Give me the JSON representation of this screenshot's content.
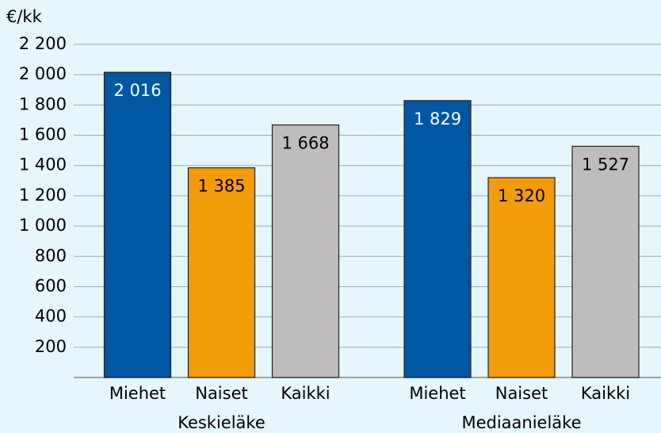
{
  "chart_data": {
    "type": "bar",
    "y_label": "€/kk",
    "categories": [
      "Keskieläke",
      "Mediaanieläke"
    ],
    "series": [
      {
        "name": "Miehet",
        "color": "#0057a4",
        "values": [
          2016,
          1829
        ],
        "value_labels": [
          "2 016",
          "1 829"
        ]
      },
      {
        "name": "Naiset",
        "color": "#f39c0a",
        "values": [
          1385,
          1320
        ],
        "value_labels": [
          "1 385",
          "1 320"
        ]
      },
      {
        "name": "Kaikki",
        "color": "#bfbdbb",
        "values": [
          1668,
          1527
        ],
        "value_labels": [
          "1 668",
          "1 527"
        ]
      }
    ],
    "ylim": [
      0,
      2200
    ],
    "yticks": [
      200,
      400,
      600,
      800,
      {
        "value": 1000,
        "label": "1 000"
      },
      {
        "value": 1200,
        "label": "1 200"
      },
      {
        "value": 1400,
        "label": "1 400"
      },
      {
        "value": 1600,
        "label": "1 600"
      },
      {
        "value": 1800,
        "label": "1 800"
      },
      {
        "value": 2000,
        "label": "2 000"
      },
      {
        "value": 2200,
        "label": "2 200"
      }
    ],
    "grid": true
  }
}
